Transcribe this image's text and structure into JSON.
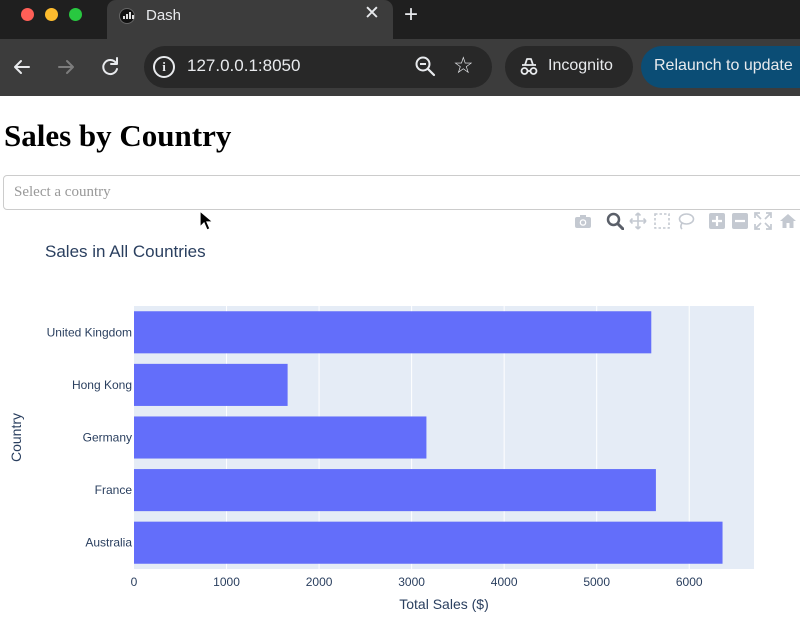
{
  "browser": {
    "tab_title": "Dash",
    "tab_close": "✕",
    "new_tab": "+",
    "url": "127.0.0.1:8050",
    "incognito_label": "Incognito",
    "relaunch_label": "Relaunch to update"
  },
  "page": {
    "heading": "Sales by Country",
    "dropdown_placeholder": "Select a country"
  },
  "modebar": [
    "camera-icon",
    "zoom-icon",
    "pan-icon",
    "box-select-icon",
    "lasso-select-icon",
    "zoom-in-icon",
    "zoom-out-icon",
    "autoscale-icon",
    "reset-axes-icon"
  ],
  "colors": {
    "bar": "#636efa",
    "plot_bg": "#e5ecf6",
    "title_text": "#2a3f5f"
  },
  "chart_data": {
    "type": "bar",
    "orientation": "horizontal",
    "title": "Sales in All Countries",
    "xlabel": "Total Sales ($)",
    "ylabel": "Country",
    "categories": [
      "United Kingdom",
      "Hong Kong",
      "Germany",
      "France",
      "Australia"
    ],
    "values": [
      5590,
      1660,
      3160,
      5640,
      6360
    ],
    "xlim": [
      0,
      6700
    ],
    "xticks": [
      0,
      1000,
      2000,
      3000,
      4000,
      5000,
      6000
    ],
    "grid": true,
    "legend": "none"
  }
}
